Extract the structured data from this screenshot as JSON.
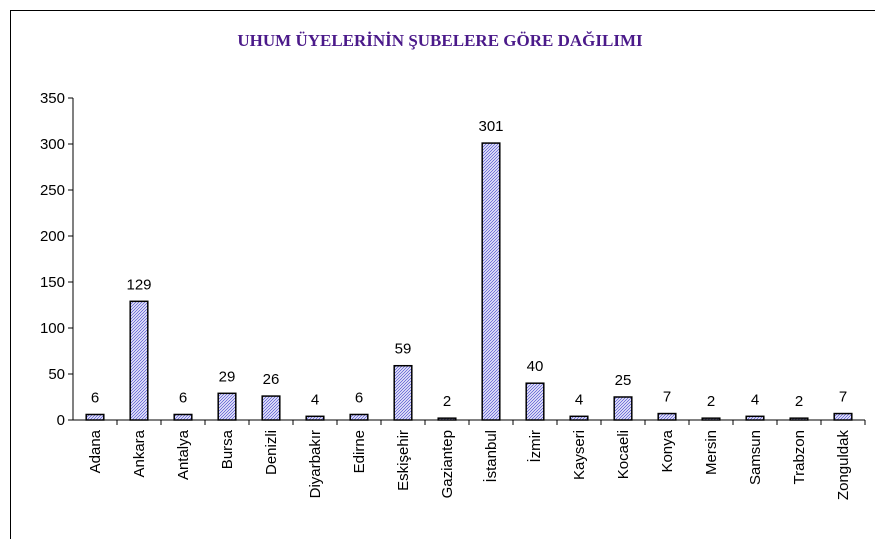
{
  "chart_data": {
    "type": "bar",
    "title": "UHUM ÜYELERİNİN ŞUBELERE GÖRE DAĞILIMI",
    "categories": [
      "Adana",
      "Ankara",
      "Antalya",
      "Bursa",
      "Denizli",
      "Diyarbakır",
      "Edirne",
      "Eskişehir",
      "Gaziantep",
      "İstanbul",
      "İzmir",
      "Kayseri",
      "Kocaeli",
      "Konya",
      "Mersin",
      "Samsun",
      "Trabzon",
      "Zonguldak"
    ],
    "values": [
      6,
      129,
      6,
      29,
      26,
      4,
      6,
      59,
      2,
      301,
      40,
      4,
      25,
      7,
      2,
      4,
      2,
      7
    ],
    "color": "#6a6ad8",
    "title_color": "#4b1a8a",
    "ylim": [
      0,
      350
    ],
    "yticks": [
      0,
      50,
      100,
      150,
      200,
      250,
      300,
      350
    ],
    "grid": false
  }
}
